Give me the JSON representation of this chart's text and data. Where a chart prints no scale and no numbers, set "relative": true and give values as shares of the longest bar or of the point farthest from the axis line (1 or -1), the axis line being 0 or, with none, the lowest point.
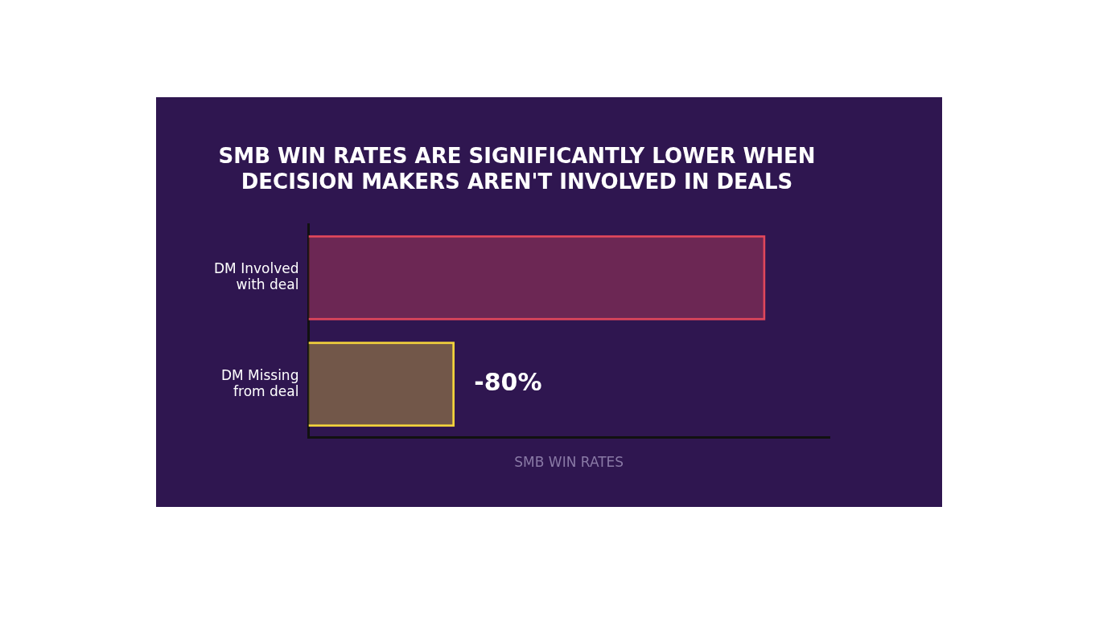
{
  "chart_data": {
    "type": "bar",
    "orientation": "horizontal",
    "relative": true,
    "title": "SMB WIN RATES ARE SIGNIFICANTLY LOWER WHEN\nDECISION MAKERS AREN'T INVOLVED IN DEALS",
    "xlabel": "SMB WIN RATES",
    "categories": [
      "DM Involved\nwith deal",
      "DM Missing\nfrom deal"
    ],
    "values": [
      1,
      0.32
    ],
    "colors": [
      "#e0475b",
      "#f2d23c"
    ],
    "annotations": [
      "-80%"
    ],
    "grid": false,
    "legend": false
  }
}
